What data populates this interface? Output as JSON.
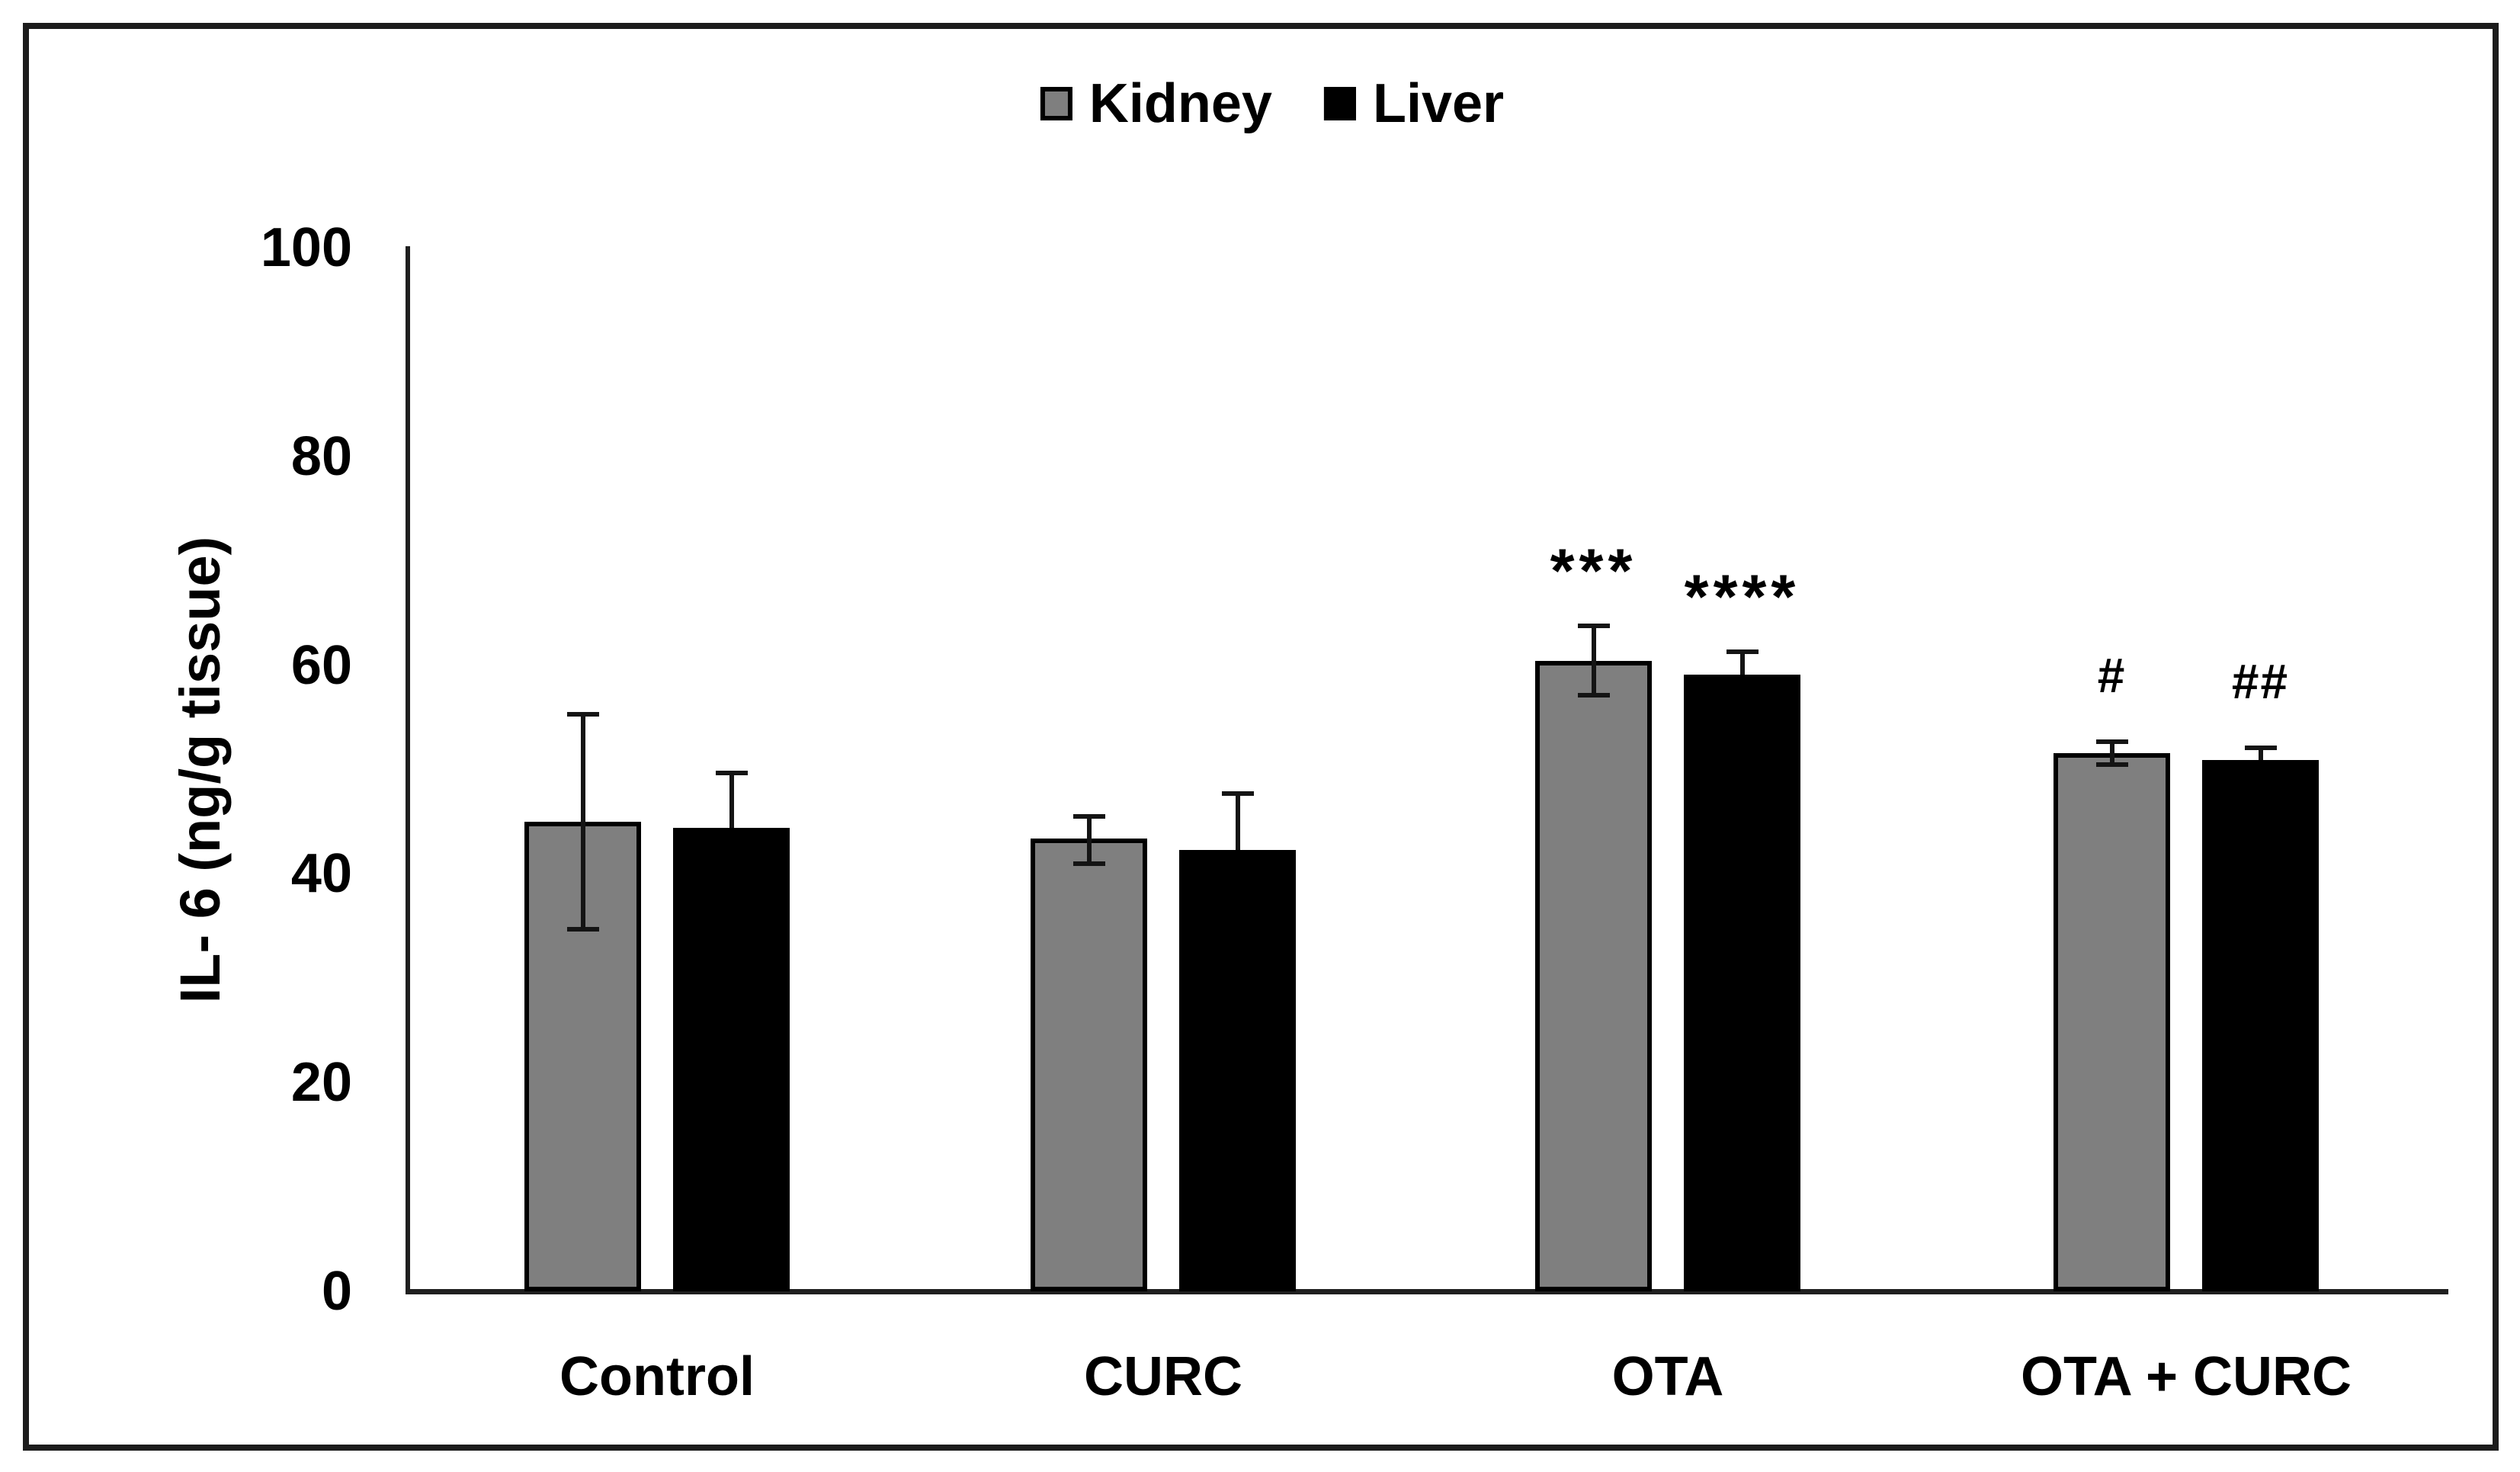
{
  "page": {
    "background": "#ffffff",
    "frame_border_color": "#1c1c1c"
  },
  "legend": {
    "items": [
      {
        "label": "Kidney",
        "swatch_color": "#7f7f7f",
        "swatch_border": "#000000"
      },
      {
        "label": "Liver",
        "swatch_color": "#000000",
        "swatch_border": "#000000"
      }
    ]
  },
  "chart_data": {
    "type": "bar",
    "title": "",
    "xlabel": "",
    "ylabel": "IL- 6 (ng/g tissue)",
    "ylim": [
      0,
      100
    ],
    "yticks": [
      0,
      20,
      40,
      60,
      80,
      100
    ],
    "grid": false,
    "legend_position": "top-center",
    "categories": [
      "Control",
      "CURC",
      "OTA",
      "OTA + CURC"
    ],
    "series": [
      {
        "name": "Kidney",
        "color": "#7f7f7f",
        "bar_border_color": "#000000",
        "values": [
          45.0,
          43.4,
          60.4,
          51.6
        ],
        "errors_up": [
          10.3,
          2.1,
          3.4,
          1.1
        ],
        "errors_down": [
          10.3,
          2.4,
          3.3,
          1.1
        ],
        "annotations": [
          "",
          "",
          "***",
          "#"
        ]
      },
      {
        "name": "Liver",
        "color": "#000000",
        "bar_border_color": "#000000",
        "values": [
          44.4,
          42.3,
          59.1,
          50.9
        ],
        "errors_up": [
          5.3,
          5.4,
          2.2,
          1.2
        ],
        "errors_down": [
          null,
          null,
          null,
          null
        ],
        "annotations": [
          "",
          "",
          "****",
          "##"
        ]
      }
    ]
  }
}
